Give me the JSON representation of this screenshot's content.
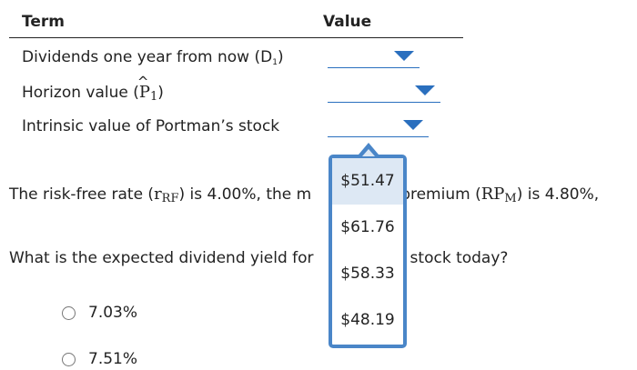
{
  "table": {
    "header_term": "Term",
    "header_value": "Value",
    "rows": [
      {
        "label": "Dividends one year from now (D",
        "sub": "1",
        "close": ")"
      },
      {
        "label": "Horizon value (",
        "symbol": "P",
        "sub": "1",
        "close": ")"
      },
      {
        "label": "Intrinsic value of Portman’s stock"
      }
    ]
  },
  "dropdown_icon": "caret-down-icon",
  "accent_color": "#2a6fbe",
  "paragraph1": {
    "part1": "The risk-free rate (",
    "symbol_r": "r",
    "sub_rf": "RF",
    "part2": ") is 4.00%, the m",
    "part3": "premium (",
    "symbol_rp": "RP",
    "sub_m": "M",
    "part4": ") is 4.80%,"
  },
  "paragraph2": {
    "part1": "What is the expected dividend yield for",
    "part2": "stock today?"
  },
  "options": [
    "7.03%",
    "7.51%"
  ],
  "popup": {
    "items": [
      "$51.47",
      "$61.76",
      "$58.33",
      "$48.19"
    ],
    "highlight_color": "#dde8f4",
    "border_color": "#4a86c8"
  }
}
